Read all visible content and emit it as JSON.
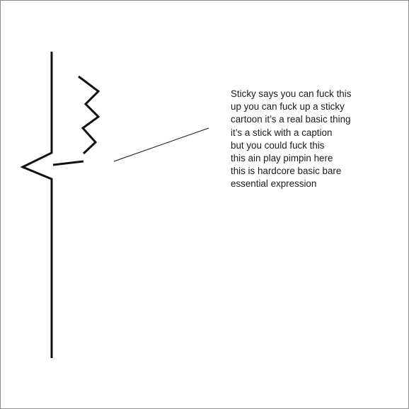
{
  "caption": {
    "lines": [
      "Sticky says you can fuck this",
      "up you can fuck up a sticky",
      "cartoon it’s a real basic thing",
      "it’s a stick with a caption",
      "but you could fuck this",
      "this ain play pimpin here",
      "this is hardcore basic bare",
      "essential expression"
    ]
  },
  "colors": {
    "ink": "#111111",
    "background": "#ffffff",
    "frame": "#8a8a8a"
  }
}
